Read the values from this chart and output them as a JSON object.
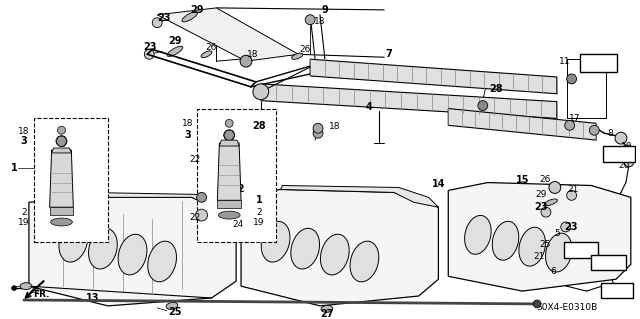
{
  "bg_color": "#ffffff",
  "line_color": "#000000",
  "fig_width": 6.4,
  "fig_height": 3.19,
  "dpi": 100,
  "diagram_id": "S0X4-E0310B"
}
